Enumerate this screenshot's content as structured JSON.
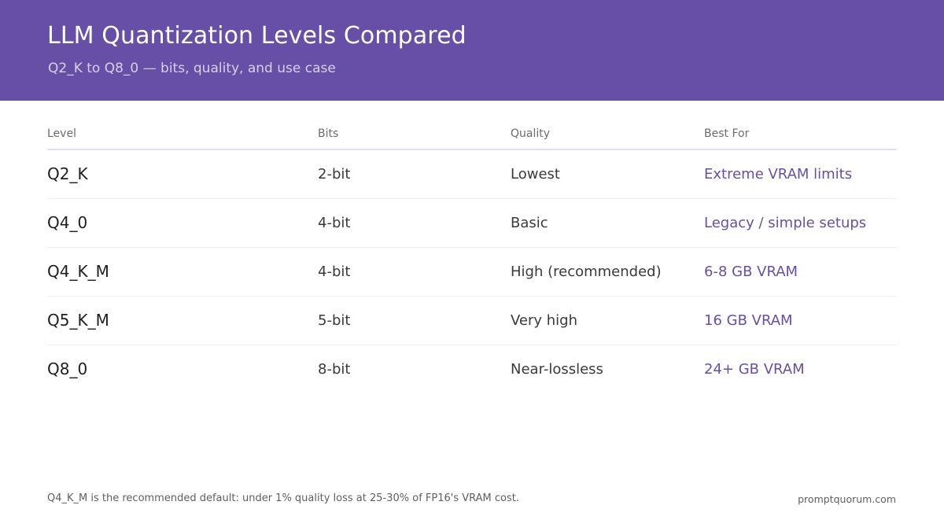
{
  "header": {
    "title": "LLM Quantization Levels Compared",
    "subtitle": "Q2_K to Q8_0 — bits, quality, and use case"
  },
  "table": {
    "columns": [
      "Level",
      "Bits",
      "Quality",
      "Best For"
    ],
    "rows": [
      {
        "level": "Q2_K",
        "bits": "2-bit",
        "quality": "Lowest",
        "best_for": "Extreme VRAM limits"
      },
      {
        "level": "Q4_0",
        "bits": "4-bit",
        "quality": "Basic",
        "best_for": "Legacy / simple setups"
      },
      {
        "level": "Q4_K_M",
        "bits": "4-bit",
        "quality": "High (recommended)",
        "best_for": "6-8 GB VRAM"
      },
      {
        "level": "Q5_K_M",
        "bits": "5-bit",
        "quality": "Very high",
        "best_for": "16 GB VRAM"
      },
      {
        "level": "Q8_0",
        "bits": "8-bit",
        "quality": "Near-lossless",
        "best_for": "24+ GB VRAM"
      }
    ]
  },
  "footer": {
    "note": "Q4_K_M is the recommended default: under 1% quality loss at 25-30% of FP16's VRAM cost.",
    "site": "promptquorum.com"
  },
  "colors": {
    "header_background": "#674ea7",
    "accent": "#674ea7",
    "text": "#1f1f1f",
    "muted": "#6b6b6b"
  }
}
